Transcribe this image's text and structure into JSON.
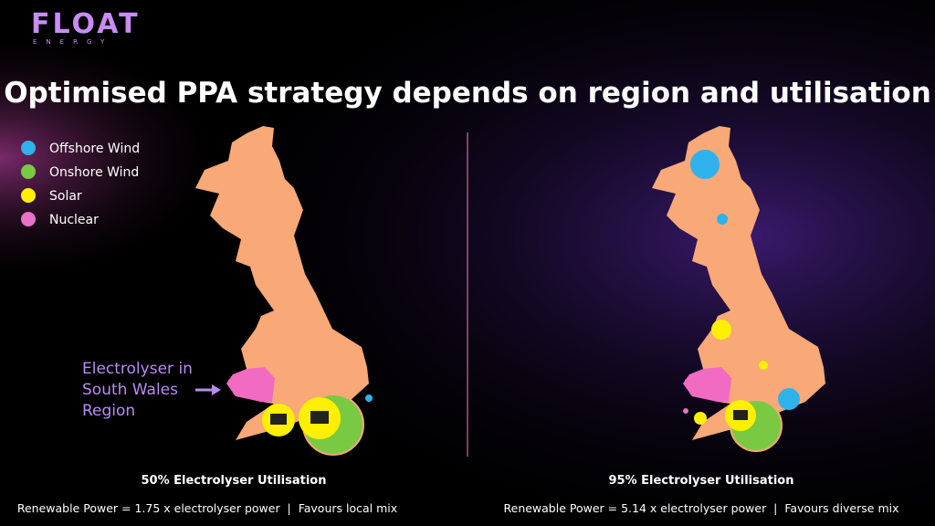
{
  "logo": {
    "name": "FLOAT",
    "tagline": "ENERGY"
  },
  "title": "Optimised PPA strategy depends on region and utilisation",
  "legend": [
    "Offshore Wind",
    "Onshore Wind",
    "Solar",
    "Nuclear"
  ],
  "annotation": [
    "Electrolyser in",
    "South Wales",
    "Region"
  ],
  "maps": [
    {
      "caption": "50% Electrolyser Utilisation",
      "subtitle": "Renewable Power = 1.75 x electrolyser power  |  Favours local mix"
    },
    {
      "caption": "95% Electrolyser Utilisation",
      "subtitle": "Renewable Power = 5.14 x electrolyser power  |  Favours diverse mix"
    }
  ]
}
